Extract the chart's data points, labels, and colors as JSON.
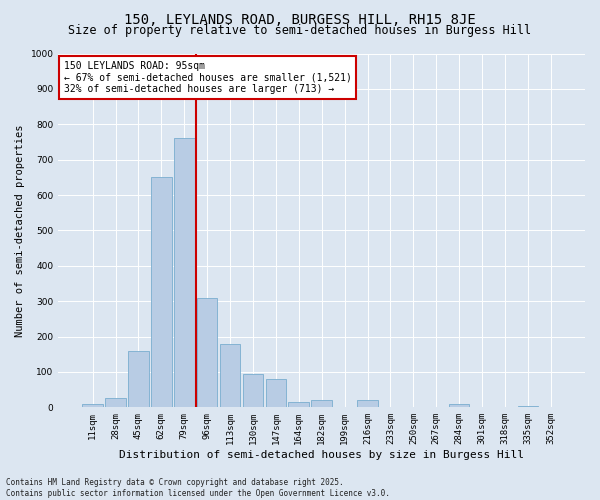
{
  "title": "150, LEYLANDS ROAD, BURGESS HILL, RH15 8JE",
  "subtitle": "Size of property relative to semi-detached houses in Burgess Hill",
  "xlabel": "Distribution of semi-detached houses by size in Burgess Hill",
  "ylabel": "Number of semi-detached properties",
  "categories": [
    "11sqm",
    "28sqm",
    "45sqm",
    "62sqm",
    "79sqm",
    "96sqm",
    "113sqm",
    "130sqm",
    "147sqm",
    "164sqm",
    "182sqm",
    "199sqm",
    "216sqm",
    "233sqm",
    "250sqm",
    "267sqm",
    "284sqm",
    "301sqm",
    "318sqm",
    "335sqm",
    "352sqm"
  ],
  "bar_values": [
    10,
    25,
    160,
    650,
    760,
    310,
    180,
    95,
    80,
    15,
    20,
    0,
    20,
    0,
    0,
    0,
    10,
    0,
    0,
    5,
    0
  ],
  "bar_color": "#b8cce4",
  "bar_edge_color": "#7aadcf",
  "vline_x": 4.5,
  "vline_color": "#cc0000",
  "annotation_text": "150 LEYLANDS ROAD: 95sqm\n← 67% of semi-detached houses are smaller (1,521)\n32% of semi-detached houses are larger (713) →",
  "annotation_box_color": "#ffffff",
  "annotation_box_edge": "#cc0000",
  "ylim": [
    0,
    1000
  ],
  "yticks": [
    0,
    100,
    200,
    300,
    400,
    500,
    600,
    700,
    800,
    900,
    1000
  ],
  "background_color": "#dce6f1",
  "plot_bg_color": "#dce6f1",
  "footnote": "Contains HM Land Registry data © Crown copyright and database right 2025.\nContains public sector information licensed under the Open Government Licence v3.0.",
  "title_fontsize": 10,
  "subtitle_fontsize": 8.5,
  "xlabel_fontsize": 8,
  "ylabel_fontsize": 7.5,
  "tick_fontsize": 6.5,
  "annotation_fontsize": 7,
  "footnote_fontsize": 5.5
}
